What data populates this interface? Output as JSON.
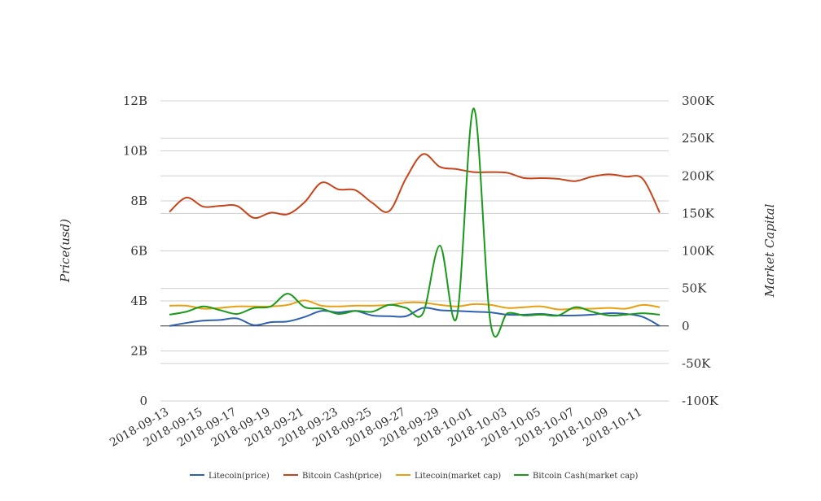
{
  "chart_data": {
    "type": "line",
    "xlabel": "",
    "ylabel_left": "Price(usd)",
    "ylabel_right": "Market Capital",
    "x": [
      "2018-09-13",
      "2018-09-14",
      "2018-09-15",
      "2018-09-16",
      "2018-09-17",
      "2018-09-18",
      "2018-09-19",
      "2018-09-20",
      "2018-09-21",
      "2018-09-22",
      "2018-09-23",
      "2018-09-24",
      "2018-09-25",
      "2018-09-26",
      "2018-09-27",
      "2018-09-28",
      "2018-09-29",
      "2018-09-30",
      "2018-10-01",
      "2018-10-02",
      "2018-10-03",
      "2018-10-04",
      "2018-10-05",
      "2018-10-06",
      "2018-10-07",
      "2018-10-08",
      "2018-10-09",
      "2018-10-10",
      "2018-10-11",
      "2018-10-12"
    ],
    "x_tick_labels": [
      "2018-09-13",
      "2018-09-15",
      "2018-09-17",
      "2018-09-19",
      "2018-09-21",
      "2018-09-23",
      "2018-09-25",
      "2018-09-27",
      "2018-09-29",
      "2018-10-01",
      "2018-10-03",
      "2018-10-05",
      "2018-10-07",
      "2018-10-09",
      "2018-10-11"
    ],
    "y_left": {
      "ticks": [
        0,
        2,
        4,
        6,
        8,
        10,
        12
      ],
      "tick_labels": [
        "0",
        "2B",
        "4B",
        "6B",
        "8B",
        "10B",
        "12B"
      ],
      "range": [
        0,
        12
      ],
      "unit": "B"
    },
    "y_right": {
      "ticks": [
        -100,
        -50,
        0,
        50,
        100,
        150,
        200,
        250,
        300
      ],
      "tick_labels": [
        "-100K",
        "-50K",
        "0",
        "50K",
        "100K",
        "150K",
        "200K",
        "250K",
        "300K"
      ],
      "range": [
        -100,
        300
      ],
      "unit": "K"
    },
    "grid": true,
    "legend_position": "bottom",
    "series": [
      {
        "name": "Litecoin(price)",
        "axis": "right",
        "color": "#3060b0",
        "values": [
          0,
          4,
          7,
          8,
          10,
          1,
          5,
          6,
          12,
          20,
          18,
          20,
          14,
          13,
          13,
          24,
          21,
          20,
          19,
          18,
          15,
          15,
          16,
          14,
          14,
          15,
          17,
          16,
          12,
          0
        ]
      },
      {
        "name": "Bitcoin Cash(price)",
        "axis": "right",
        "color": "#c8441a",
        "values": [
          152,
          171,
          159,
          160,
          160,
          144,
          151,
          149,
          165,
          191,
          182,
          181,
          164,
          153,
          197,
          229,
          212,
          209,
          205,
          205,
          204,
          197,
          197,
          196,
          193,
          199,
          202,
          199,
          196,
          151
        ]
      },
      {
        "name": "Litecoin(market cap)",
        "axis": "right",
        "color": "#e8a010",
        "values": [
          27,
          27,
          23,
          24,
          26,
          26,
          26,
          28,
          34,
          27,
          26,
          27,
          27,
          28,
          31,
          31,
          28,
          26,
          29,
          28,
          24,
          25,
          26,
          22,
          23,
          23,
          24,
          23,
          28,
          25
        ]
      },
      {
        "name": "Bitcoin Cash(market cap)",
        "axis": "right",
        "color": "#1a9a1a",
        "values": [
          15,
          19,
          26,
          21,
          16,
          24,
          26,
          43,
          25,
          23,
          16,
          20,
          19,
          28,
          24,
          17,
          107,
          12,
          290,
          3,
          17,
          14,
          15,
          14,
          25,
          19,
          14,
          15,
          17,
          15
        ]
      }
    ]
  }
}
